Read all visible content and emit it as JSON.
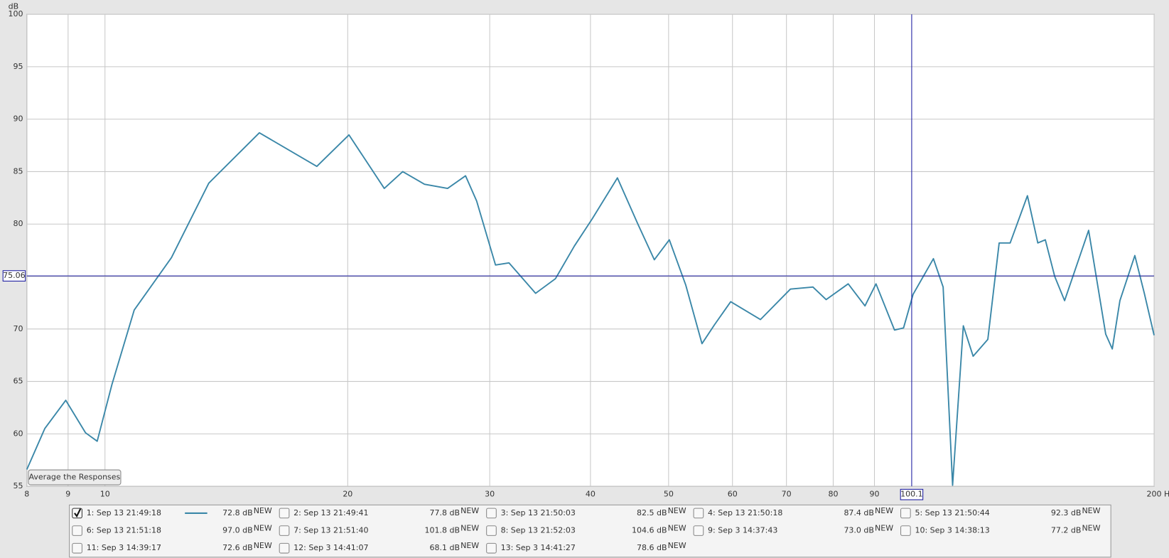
{
  "chart_data": {
    "type": "line",
    "y_label": "dB",
    "xscale": "log",
    "grid": true,
    "xlim": [
      8,
      200
    ],
    "ylim": [
      55,
      100
    ],
    "xticks": [
      8,
      9,
      10,
      20,
      30,
      40,
      50,
      60,
      70,
      80,
      90,
      {
        "value": 200,
        "label": "200 Hz"
      }
    ],
    "yticks": [
      55,
      60,
      65,
      70,
      75,
      80,
      85,
      90,
      95,
      100
    ],
    "cursor": {
      "x": 100.1,
      "y": 75.06
    },
    "series": [
      {
        "color": "#3a87a8",
        "x": [
          8,
          8.42,
          8.94,
          9.46,
          9.78,
          10.2,
          10.87,
          12.09,
          13.45,
          15.54,
          18.31,
          20.07,
          22.2,
          23.4,
          24.9,
          26.6,
          28.0,
          28.9,
          30.5,
          31.7,
          34.2,
          36.2,
          38.2,
          40.2,
          43.2,
          45.8,
          48.0,
          50.1,
          52.5,
          55.0,
          57.0,
          59.7,
          65.0,
          70.8,
          75.5,
          78.4,
          83.5,
          87.6,
          90.4,
          95.3,
          97.8,
          100.5,
          106.5,
          109.5,
          112.5,
          116,
          119.3,
          124.4,
          128.5,
          132.6,
          139.3,
          143.5,
          146.6,
          150.6,
          154.9,
          165.9,
          174.2,
          177.5,
          181.4,
          189.3,
          194.5,
          200
        ],
        "values": [
          56.6,
          60.5,
          63.2,
          60.1,
          59.3,
          64.7,
          71.8,
          76.8,
          83.9,
          88.7,
          85.5,
          88.5,
          83.4,
          85.0,
          83.8,
          83.4,
          84.6,
          82.2,
          76.1,
          76.3,
          73.4,
          74.8,
          77.9,
          80.5,
          84.4,
          80.0,
          76.6,
          78.5,
          74.2,
          68.6,
          70.4,
          72.6,
          70.9,
          73.8,
          74.0,
          72.8,
          74.3,
          72.2,
          74.3,
          69.9,
          70.1,
          73.3,
          76.7,
          74.0,
          55.1,
          70.3,
          67.4,
          69.0,
          78.2,
          78.2,
          82.7,
          78.2,
          78.5,
          75.0,
          72.7,
          79.4,
          69.5,
          68.1,
          72.7,
          77.0,
          73.4,
          69.4
        ]
      }
    ]
  },
  "button": "Average the Responses",
  "measurements": [
    {
      "label": "1: Sep 13 21:49:18",
      "value": "72.8 dB",
      "badge": "NEW",
      "color": "#3a87a8",
      "checked": true
    },
    {
      "label": "2: Sep 13 21:49:41",
      "value": "77.8 dB",
      "badge": "NEW",
      "color": "#a01818",
      "checked": false
    },
    {
      "label": "3: Sep 13 21:50:03",
      "value": "82.5 dB",
      "badge": "NEW",
      "color": "#2a8a2a",
      "checked": false
    },
    {
      "label": "4: Sep 13 21:50:18",
      "value": "87.4 dB",
      "badge": "NEW",
      "color": "#404090",
      "checked": false
    },
    {
      "label": "5: Sep 13 21:50:44",
      "value": "92.3 dB",
      "badge": "NEW",
      "color": "#8a1a6a",
      "checked": false
    },
    {
      "label": "6: Sep 13 21:51:18",
      "value": "97.0 dB",
      "badge": "NEW",
      "color": "#1a7a7a",
      "checked": false
    },
    {
      "label": "7: Sep 13 21:51:40",
      "value": "101.8 dB",
      "badge": "NEW",
      "color": "#b08a10",
      "checked": false
    },
    {
      "label": "8: Sep 13 21:52:03",
      "value": "104.6 dB",
      "badge": "NEW",
      "color": "#1a8a5a",
      "checked": false
    },
    {
      "label": "9: Sep 3 14:37:43",
      "value": "73.0 dB",
      "badge": "NEW",
      "color": "#6a2a8a",
      "checked": false
    },
    {
      "label": "10: Sep 3 14:38:13",
      "value": "77.2 dB",
      "badge": "NEW",
      "color": "#8a3a5a",
      "checked": false
    },
    {
      "label": "11: Sep 3 14:39:17",
      "value": "72.6 dB",
      "badge": "NEW",
      "color": "#3a8aa8",
      "checked": false
    },
    {
      "label": "12: Sep 3 14:41:07",
      "value": "68.1 dB",
      "badge": "NEW",
      "color": "#1a6a1a",
      "checked": false
    },
    {
      "label": "13: Sep 3 14:41:27",
      "value": "78.6 dB",
      "badge": "NEW",
      "color": "#2a3a8a",
      "checked": false
    }
  ]
}
